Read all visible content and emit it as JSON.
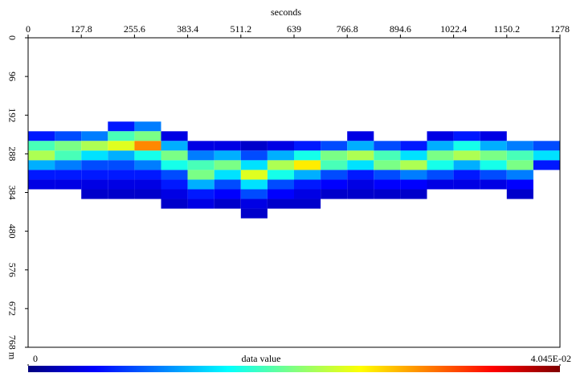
{
  "chart_data": {
    "type": "heatmap",
    "x_label": "seconds",
    "colorbar_label": "data value",
    "xlim": [
      0,
      1278
    ],
    "xticks": [
      0,
      127.8,
      255.6,
      383.4,
      511.2,
      639,
      766.8,
      894.6,
      1022.4,
      1150.2,
      1278
    ],
    "ylim": [
      0,
      768
    ],
    "yticks": [
      0,
      96,
      192,
      288,
      384,
      480,
      576,
      672,
      {
        "value": 768,
        "label": "768 m"
      }
    ],
    "zlim": [
      0,
      0.04045
    ],
    "zticks": [
      0,
      {
        "value": 0.04045,
        "label": "4.045E-02"
      }
    ],
    "colormap": [
      "#00007f",
      "#0000ff",
      "#0080ff",
      "#00ffff",
      "#80ff80",
      "#ffff00",
      "#ff8000",
      "#ff0000",
      "#7f0000"
    ],
    "xbins": [
      0,
      63.9,
      127.8,
      191.7,
      255.6,
      319.5,
      383.4,
      447.3,
      511.2,
      575.1,
      639,
      702.9,
      766.8,
      830.7,
      894.6,
      958.5,
      1022.4,
      1086.3,
      1150.2,
      1214.1,
      1278
    ],
    "ybins": [
      208,
      232,
      256,
      280,
      304,
      328,
      352,
      376,
      400,
      424,
      448
    ],
    "values": [
      [
        null,
        0.006,
        0.018,
        0.022,
        0.012,
        0.006,
        0.004,
        null,
        null,
        null
      ],
      [
        null,
        0.008,
        0.02,
        0.018,
        0.01,
        0.006,
        0.004,
        null,
        null,
        null
      ],
      [
        null,
        0.01,
        0.022,
        0.014,
        0.008,
        0.006,
        0.004,
        0.003,
        null,
        null
      ],
      [
        0.006,
        0.018,
        0.024,
        0.012,
        0.008,
        0.006,
        0.004,
        0.003,
        null,
        null
      ],
      [
        0.01,
        0.02,
        0.03,
        0.016,
        0.01,
        0.006,
        0.004,
        0.003,
        null,
        null
      ],
      [
        null,
        0.004,
        0.012,
        0.02,
        0.016,
        0.008,
        0.006,
        0.004,
        0.003,
        null
      ],
      [
        null,
        null,
        0.004,
        0.01,
        0.018,
        0.02,
        0.012,
        0.006,
        0.004,
        null
      ],
      [
        null,
        null,
        0.004,
        0.012,
        0.02,
        0.014,
        0.008,
        0.005,
        0.003,
        null
      ],
      [
        null,
        null,
        0.003,
        0.008,
        0.014,
        0.024,
        0.014,
        0.008,
        0.004,
        0.003
      ],
      [
        null,
        null,
        0.004,
        0.012,
        0.022,
        0.016,
        0.008,
        0.005,
        0.003,
        null
      ],
      [
        null,
        null,
        0.006,
        0.016,
        0.026,
        0.012,
        0.006,
        0.004,
        0.003,
        null
      ],
      [
        null,
        null,
        0.008,
        0.02,
        0.018,
        0.008,
        0.005,
        0.003,
        null,
        null
      ],
      [
        null,
        0.004,
        0.012,
        0.022,
        0.014,
        0.006,
        0.004,
        0.003,
        null,
        null
      ],
      [
        null,
        null,
        0.008,
        0.018,
        0.02,
        0.008,
        0.005,
        0.003,
        null,
        null
      ],
      [
        null,
        null,
        0.006,
        0.014,
        0.022,
        0.01,
        0.005,
        0.003,
        null,
        null
      ],
      [
        null,
        0.004,
        0.012,
        0.02,
        0.016,
        0.008,
        0.004,
        null,
        null,
        null
      ],
      [
        null,
        0.006,
        0.016,
        0.022,
        0.012,
        0.006,
        0.004,
        null,
        null,
        null
      ],
      [
        null,
        0.004,
        0.012,
        0.02,
        0.016,
        0.008,
        0.004,
        null,
        null,
        null
      ],
      [
        null,
        null,
        0.01,
        0.018,
        0.02,
        0.01,
        0.005,
        0.003,
        null,
        null
      ],
      [
        null,
        null,
        0.008,
        0.014,
        0.006,
        null,
        null,
        null,
        null,
        null
      ]
    ]
  }
}
